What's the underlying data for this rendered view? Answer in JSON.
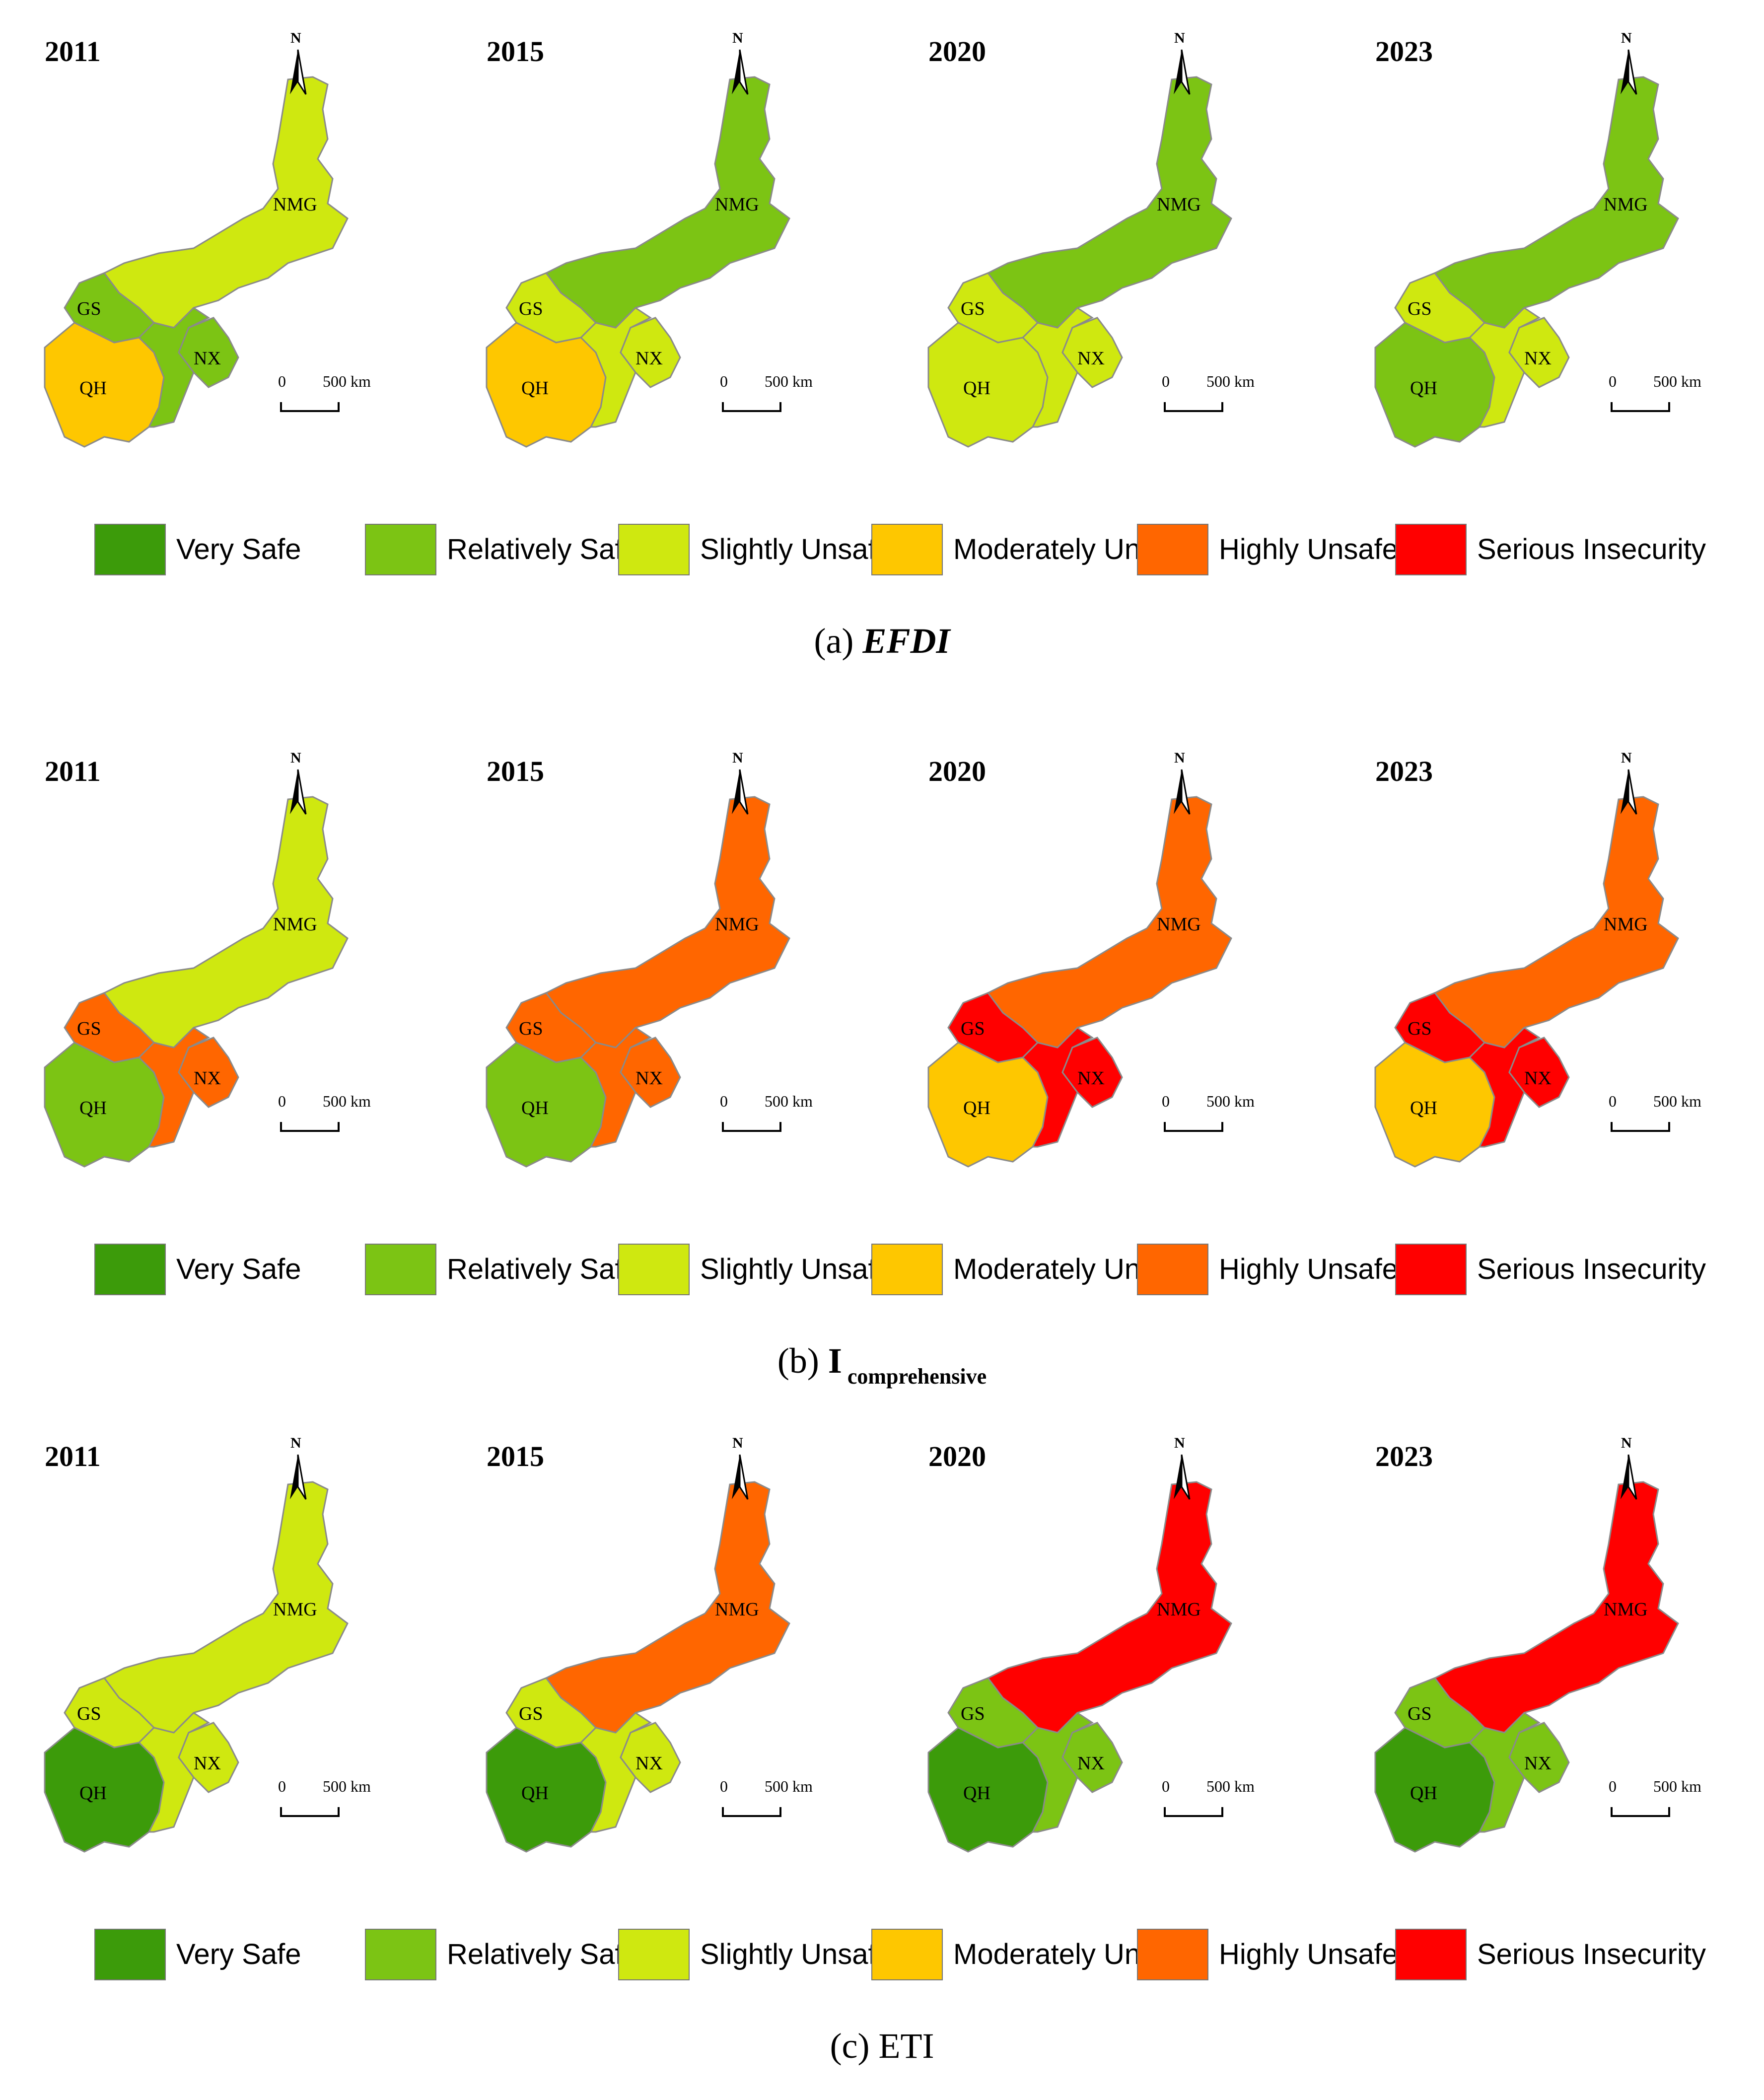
{
  "legend": [
    {
      "label": "Very Safe",
      "color": "#3c9b0a"
    },
    {
      "label": "Relatively Safe",
      "color": "#7cc414"
    },
    {
      "label": "Slightly Unsafe",
      "color": "#cfe810"
    },
    {
      "label": "Moderately Unsafe",
      "color": "#fec700"
    },
    {
      "label": "Highly Unsafe",
      "color": "#ff6600"
    },
    {
      "label": "Serious Insecurity",
      "color": "#ff0000"
    }
  ],
  "region_labels": {
    "nmg": "NMG",
    "gs": "GS",
    "nx": "NX",
    "qh": "QH"
  },
  "scale": {
    "zero": "0",
    "distance": "500 km"
  },
  "north_label": "N",
  "panels": [
    {
      "caption_prefix": "(a) ",
      "caption_main": "EFDI",
      "caption_sub": "",
      "maps": [
        {
          "year": "2011",
          "classes": {
            "nmg": "Slightly Unsafe",
            "gs": "Relatively Safe",
            "nx": "Relatively Safe",
            "qh": "Moderately Unsafe"
          }
        },
        {
          "year": "2015",
          "classes": {
            "nmg": "Relatively Safe",
            "gs": "Slightly Unsafe",
            "nx": "Slightly Unsafe",
            "qh": "Moderately Unsafe"
          }
        },
        {
          "year": "2020",
          "classes": {
            "nmg": "Relatively Safe",
            "gs": "Slightly Unsafe",
            "nx": "Slightly Unsafe",
            "qh": "Slightly Unsafe"
          }
        },
        {
          "year": "2023",
          "classes": {
            "nmg": "Relatively Safe",
            "gs": "Slightly Unsafe",
            "nx": "Slightly Unsafe",
            "qh": "Relatively Safe"
          }
        }
      ]
    },
    {
      "caption_prefix": "(b) ",
      "caption_main": "I",
      "caption_sub": "comprehensive",
      "maps": [
        {
          "year": "2011",
          "classes": {
            "nmg": "Slightly Unsafe",
            "gs": "Highly Unsafe",
            "nx": "Highly Unsafe",
            "qh": "Relatively Safe"
          }
        },
        {
          "year": "2015",
          "classes": {
            "nmg": "Highly Unsafe",
            "gs": "Highly Unsafe",
            "nx": "Highly Unsafe",
            "qh": "Relatively Safe"
          }
        },
        {
          "year": "2020",
          "classes": {
            "nmg": "Highly Unsafe",
            "gs": "Serious Insecurity",
            "nx": "Serious Insecurity",
            "qh": "Moderately Unsafe"
          }
        },
        {
          "year": "2023",
          "classes": {
            "nmg": "Highly Unsafe",
            "gs": "Serious Insecurity",
            "nx": "Serious Insecurity",
            "qh": "Moderately Unsafe"
          }
        }
      ]
    },
    {
      "caption_prefix": "(c) ",
      "caption_main": "ETI",
      "caption_sub": "",
      "maps": [
        {
          "year": "2011",
          "classes": {
            "nmg": "Slightly Unsafe",
            "gs": "Slightly Unsafe",
            "nx": "Slightly Unsafe",
            "qh": "Very Safe"
          }
        },
        {
          "year": "2015",
          "classes": {
            "nmg": "Highly Unsafe",
            "gs": "Slightly Unsafe",
            "nx": "Slightly Unsafe",
            "qh": "Very Safe"
          }
        },
        {
          "year": "2020",
          "classes": {
            "nmg": "Serious Insecurity",
            "gs": "Relatively Safe",
            "nx": "Relatively Safe",
            "qh": "Very Safe"
          }
        },
        {
          "year": "2023",
          "classes": {
            "nmg": "Serious Insecurity",
            "gs": "Relatively Safe",
            "nx": "Relatively Safe",
            "qh": "Very Safe"
          }
        }
      ]
    }
  ]
}
